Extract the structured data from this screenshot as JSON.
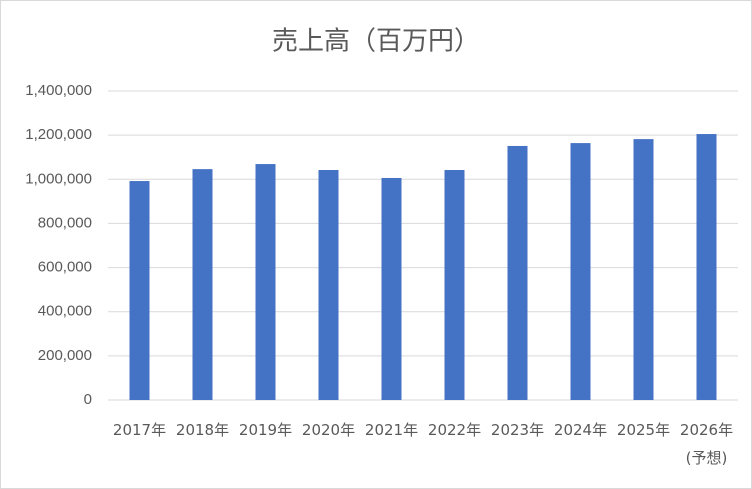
{
  "chart_data": {
    "type": "bar",
    "title": "売上高（百万円）",
    "categories": [
      "2017年",
      "2018年",
      "2019年",
      "2020年",
      "2021年",
      "2022年",
      "2023年",
      "2024年",
      "2025年",
      "2026年(予想)"
    ],
    "values": [
      992000,
      1046000,
      1069000,
      1042000,
      1006000,
      1042000,
      1151000,
      1164000,
      1182000,
      1205000
    ],
    "color": "#4472c4",
    "ylim": [
      0,
      1400000
    ],
    "yticks": [
      0,
      {
        "value": 200000,
        "label": "200,000"
      },
      {
        "value": 400000,
        "label": "400,000"
      },
      {
        "value": 600000,
        "label": "600,000"
      },
      {
        "value": 800000,
        "label": "800,000"
      },
      {
        "value": 1000000,
        "label": "1,000,000"
      },
      {
        "value": 1200000,
        "label": "1,200,000"
      },
      {
        "value": 1400000,
        "label": "1,400,000"
      }
    ],
    "grid": true
  }
}
